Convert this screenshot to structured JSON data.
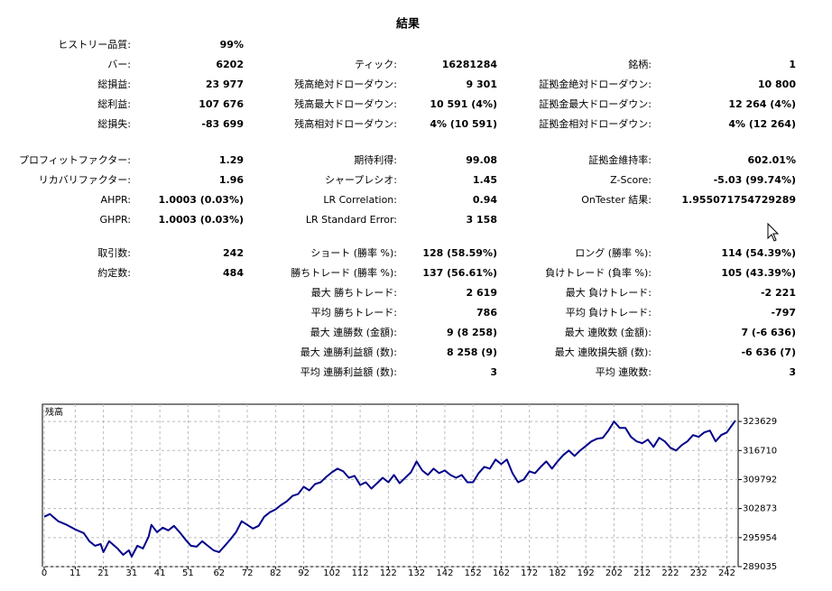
{
  "title": "結果",
  "sections": [
    [
      [
        {
          "label": "ヒストリー品質:",
          "value": "99%"
        },
        null,
        null
      ],
      [
        {
          "label": "バー:",
          "value": "6202"
        },
        {
          "label": "ティック:",
          "value": "16281284"
        },
        {
          "label": "銘柄:",
          "value": "1"
        }
      ],
      [
        {
          "label": "総損益:",
          "value": "23 977"
        },
        {
          "label": "残高絶対ドローダウン:",
          "value": "9 301"
        },
        {
          "label": "証拠金絶対ドローダウン:",
          "value": "10 800"
        }
      ],
      [
        {
          "label": "総利益:",
          "value": "107 676"
        },
        {
          "label": "残高最大ドローダウン:",
          "value": "10 591 (4%)"
        },
        {
          "label": "証拠金最大ドローダウン:",
          "value": "12 264 (4%)"
        }
      ],
      [
        {
          "label": "総損失:",
          "value": "-83 699"
        },
        {
          "label": "残高相対ドローダウン:",
          "value": "4% (10 591)"
        },
        {
          "label": "証拠金相対ドローダウン:",
          "value": "4% (12 264)"
        }
      ]
    ],
    [
      [
        {
          "label": "プロフィットファクター:",
          "value": "1.29"
        },
        {
          "label": "期待利得:",
          "value": "99.08"
        },
        {
          "label": "証拠金維持率:",
          "value": "602.01%"
        }
      ],
      [
        {
          "label": "リカバリファクター:",
          "value": "1.96"
        },
        {
          "label": "シャープレシオ:",
          "value": "1.45"
        },
        {
          "label": "Z-Score:",
          "value": "-5.03 (99.74%)"
        }
      ],
      [
        {
          "label": "AHPR:",
          "value": "1.0003 (0.03%)"
        },
        {
          "label": "LR Correlation:",
          "value": "0.94"
        },
        {
          "label": "OnTester 結果:",
          "value": "1.955071754729289"
        }
      ],
      [
        {
          "label": "GHPR:",
          "value": "1.0003 (0.03%)"
        },
        {
          "label": "LR Standard Error:",
          "value": "3 158"
        },
        null
      ]
    ],
    [
      [
        {
          "label": "取引数:",
          "value": "242"
        },
        {
          "label": "ショート (勝率 %):",
          "value": "128 (58.59%)"
        },
        {
          "label": "ロング (勝率 %):",
          "value": "114 (54.39%)"
        }
      ],
      [
        {
          "label": "約定数:",
          "value": "484"
        },
        {
          "label": "勝ちトレード (勝率 %):",
          "value": "137 (56.61%)"
        },
        {
          "label": "負けトレード (負率 %):",
          "value": "105 (43.39%)"
        }
      ],
      [
        null,
        {
          "label": "最大 勝ちトレード:",
          "value": "2 619"
        },
        {
          "label": "最大 負けトレード:",
          "value": "-2 221"
        }
      ],
      [
        null,
        {
          "label": "平均 勝ちトレード:",
          "value": "786"
        },
        {
          "label": "平均 負けトレード:",
          "value": "-797"
        }
      ],
      [
        null,
        {
          "label": "最大 連勝数 (金額):",
          "value": "9 (8 258)"
        },
        {
          "label": "最大 連敗数 (金額):",
          "value": "7 (-6 636)"
        }
      ],
      [
        null,
        {
          "label": "最大 連勝利益額 (数):",
          "value": "8 258 (9)"
        },
        {
          "label": "最大 連敗損失額 (数):",
          "value": "-6 636 (7)"
        }
      ],
      [
        null,
        {
          "label": "平均 連勝利益額 (数):",
          "value": "3"
        },
        {
          "label": "平均 連敗数:",
          "value": "3"
        }
      ]
    ]
  ],
  "chart_data": {
    "type": "line",
    "title": "残高",
    "x": [
      0,
      2,
      5,
      8,
      11,
      14,
      16,
      18,
      20,
      21,
      23,
      26,
      28,
      30,
      31,
      33,
      35,
      37,
      38,
      40,
      42,
      44,
      46,
      48,
      50,
      52,
      54,
      56,
      58,
      60,
      62,
      64,
      66,
      68,
      70,
      72,
      74,
      76,
      78,
      80,
      82,
      84,
      86,
      88,
      90,
      92,
      94,
      96,
      98,
      100,
      102,
      104,
      106,
      108,
      110,
      112,
      114,
      116,
      118,
      120,
      122,
      124,
      126,
      128,
      130,
      132,
      134,
      136,
      138,
      140,
      142,
      144,
      146,
      148,
      150,
      152,
      154,
      156,
      158,
      160,
      162,
      164,
      166,
      168,
      170,
      172,
      174,
      176,
      178,
      180,
      182,
      184,
      186,
      188,
      190,
      192,
      194,
      196,
      198,
      200,
      202,
      204,
      206,
      208,
      210,
      212,
      214,
      216,
      218,
      220,
      222,
      224,
      226,
      228,
      230,
      232,
      234,
      236,
      238,
      240,
      242,
      245
    ],
    "series": [
      {
        "color": "#00008b",
        "values": [
          300926,
          301575,
          299845,
          298980,
          297899,
          297035,
          295089,
          294008,
          294440,
          292494,
          295089,
          293359,
          291846,
          292927,
          291413,
          294008,
          293359,
          296170,
          298980,
          297251,
          298332,
          297683,
          298764,
          297251,
          295521,
          294008,
          293791,
          295089,
          294008,
          292927,
          292494,
          294008,
          295521,
          297251,
          299845,
          298980,
          298115,
          298764,
          300926,
          302007,
          302656,
          303737,
          304601,
          305899,
          306331,
          308061,
          307196,
          308709,
          309142,
          310439,
          311520,
          312385,
          311736,
          310223,
          310655,
          308493,
          309142,
          307628,
          308925,
          310223,
          309142,
          310871,
          308925,
          310223,
          311520,
          314114,
          311952,
          310871,
          312385,
          311304,
          311952,
          310871,
          310223,
          310871,
          309142,
          309142,
          311304,
          312817,
          312385,
          314547,
          313466,
          314547,
          311304,
          309142,
          309790,
          311736,
          311304,
          312817,
          314114,
          312385,
          314114,
          315628,
          316709,
          315411,
          316709,
          317790,
          318871,
          319519,
          319735,
          321465,
          323627,
          322114,
          322114,
          319952,
          318871,
          318438,
          319303,
          317573,
          319735,
          318871,
          317357,
          316709,
          318006,
          318871,
          320384,
          319952,
          321033,
          321465,
          318871,
          320384,
          321033,
          323843
        ]
      }
    ],
    "xlim": [
      0,
      246
    ],
    "ylim": [
      289035,
      327737
    ],
    "xticks": [
      0,
      11,
      21,
      31,
      41,
      51,
      62,
      72,
      82,
      92,
      102,
      112,
      122,
      132,
      142,
      152,
      162,
      172,
      182,
      192,
      202,
      212,
      222,
      232,
      242
    ],
    "yticks": [
      289035,
      295954,
      302873,
      309792,
      316710,
      323629
    ],
    "grid": true
  }
}
